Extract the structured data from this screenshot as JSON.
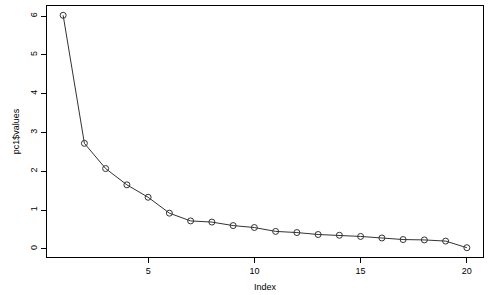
{
  "chart_data": {
    "type": "line",
    "x_label": "Index",
    "y_label": "pc1$values",
    "x": [
      1,
      2,
      3,
      4,
      5,
      6,
      7,
      8,
      9,
      10,
      11,
      12,
      13,
      14,
      15,
      16,
      17,
      18,
      19,
      20
    ],
    "values": [
      6.02,
      2.72,
      2.07,
      1.65,
      1.33,
      0.92,
      0.72,
      0.69,
      0.6,
      0.55,
      0.45,
      0.42,
      0.37,
      0.35,
      0.32,
      0.28,
      0.24,
      0.23,
      0.2,
      0.03
    ],
    "xlim": [
      0.24,
      20.76
    ],
    "ylim": [
      -0.21,
      6.26
    ],
    "xticks": [
      5,
      10,
      15,
      20
    ],
    "yticks": [
      0,
      1,
      2,
      3,
      4,
      5,
      6
    ],
    "color": "#333333",
    "marker": "circle-open",
    "line_style": "solid",
    "grid": false
  }
}
